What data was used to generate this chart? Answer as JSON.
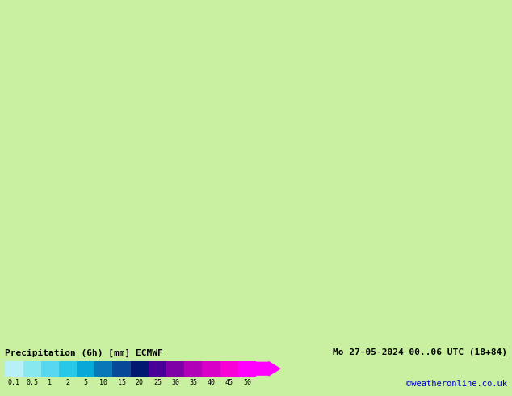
{
  "title_left": "Precipitation (6h) [mm] ECMWF",
  "title_right": "Mo 27-05-2024 00..06 UTC (18+84)",
  "credit": "©weatheronline.co.uk",
  "colorbar_labels": [
    "0.1",
    "0.5",
    "1",
    "2",
    "5",
    "10",
    "15",
    "20",
    "25",
    "30",
    "35",
    "40",
    "45",
    "50"
  ],
  "colorbar_colors": [
    "#b8f0f8",
    "#88e8f0",
    "#58d8f0",
    "#28c8e8",
    "#08a8d8",
    "#0878b8",
    "#084898",
    "#001870",
    "#480098",
    "#8000a8",
    "#b000b8",
    "#d800c8",
    "#f800d8",
    "#ff00ff"
  ],
  "land_color": "#c8f0a0",
  "sea_color": "#c8f0a0",
  "precip_light_color": "#b0ecf8",
  "precip_mid_color": "#70d8f0",
  "precip_dark_color": "#30b8e8",
  "border_color": "#aaaaaa",
  "coast_color": "#aaaaaa",
  "fig_width": 6.34,
  "fig_height": 4.9,
  "map_extent": [
    5.0,
    42.0,
    42.0,
    65.0
  ],
  "bg_color": "#c8f0a0"
}
